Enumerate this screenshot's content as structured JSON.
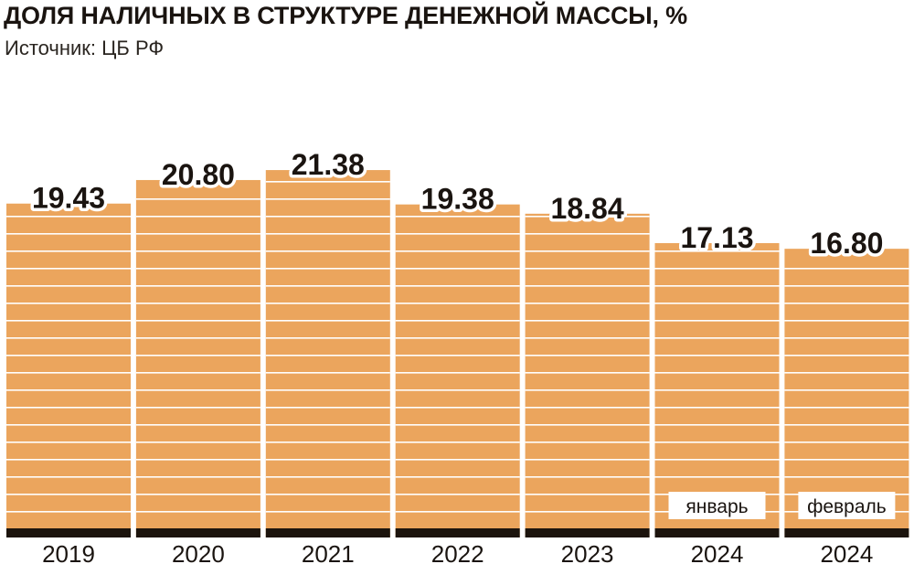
{
  "header": {
    "title": "ДОЛЯ НАЛИЧНЫХ В СТРУКТУРЕ ДЕНЕЖНОЙ МАССЫ, %",
    "source": "Источник: ЦБ РФ"
  },
  "colors": {
    "bar": "#eba55d",
    "bar_line": "#ffffff",
    "base": "#1c140d",
    "text": "#1a1410",
    "tag_bg": "#ffffff"
  },
  "chart_data": {
    "type": "bar",
    "title": "ДОЛЯ НАЛИЧНЫХ В СТРУКТУРЕ ДЕНЕЖНОЙ МАССЫ, %",
    "categories": [
      "2019",
      "2020",
      "2021",
      "2022",
      "2023",
      "2024",
      "2024"
    ],
    "values": [
      19.43,
      20.8,
      21.38,
      19.38,
      18.84,
      17.13,
      16.8
    ],
    "value_labels": [
      "19.43",
      "20.80",
      "21.38",
      "19.38",
      "18.84",
      "17.13",
      "16.80"
    ],
    "bar_notes": [
      "",
      "",
      "",
      "",
      "",
      "январь",
      "февраль"
    ],
    "xlabel": "",
    "ylabel": "",
    "ylim": [
      0,
      22.2
    ],
    "grid": false,
    "legend": "none"
  }
}
